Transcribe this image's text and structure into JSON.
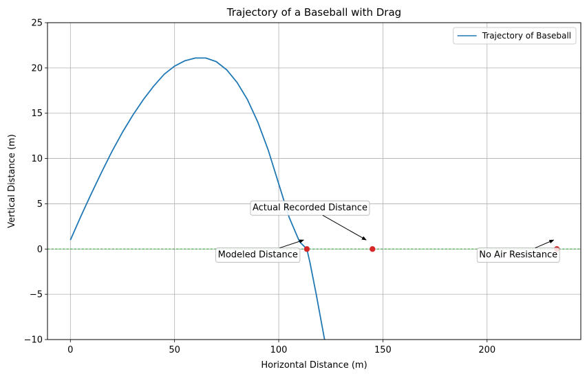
{
  "chart_data": {
    "type": "line",
    "title": "Trajectory of a Baseball with Drag",
    "xlabel": "Horizontal Distance (m)",
    "ylabel": "Vertical Distance (m)",
    "xlim": [
      -11,
      245
    ],
    "ylim": [
      -10,
      25
    ],
    "xticks": [
      0,
      50,
      100,
      150,
      200
    ],
    "yticks": [
      -10,
      -5,
      0,
      5,
      10,
      15,
      20,
      25
    ],
    "grid": true,
    "legend_position": "top-right",
    "series": [
      {
        "name": "Trajectory of Baseball",
        "color": "#1f77b4",
        "x": [
          0,
          5,
          10,
          15,
          20,
          25,
          30,
          35,
          40,
          45,
          50,
          55,
          60,
          65,
          70,
          75,
          80,
          85,
          90,
          95,
          100,
          105,
          110,
          113.5,
          115,
          118,
          122
        ],
        "y": [
          1.0,
          3.6,
          6.1,
          8.5,
          10.8,
          12.9,
          14.8,
          16.5,
          18.0,
          19.3,
          20.2,
          20.8,
          21.1,
          21.1,
          20.7,
          19.8,
          18.4,
          16.5,
          14.0,
          10.9,
          7.2,
          3.5,
          0.8,
          0.0,
          -1.5,
          -5.0,
          -10.0
        ]
      }
    ],
    "reference_line": {
      "y": 0,
      "color": "#2ca02c",
      "style": "dashed"
    },
    "points": [
      {
        "label": "Modeled Distance",
        "x": 113.5,
        "y": 0,
        "color": "#d62728",
        "label_x": 90,
        "label_y": -0.6,
        "arrow_to": [
          112,
          1.0
        ]
      },
      {
        "label": "Actual Recorded Distance",
        "x": 145,
        "y": 0,
        "color": "#d62728",
        "label_x": 115,
        "label_y": 4.6,
        "arrow_to": [
          142,
          1.0
        ]
      },
      {
        "label": "No Air Resistance",
        "x": 233.5,
        "y": 0,
        "color": "#d62728",
        "label_x": 215,
        "label_y": -0.6,
        "arrow_to": [
          232,
          1.0
        ]
      }
    ]
  }
}
